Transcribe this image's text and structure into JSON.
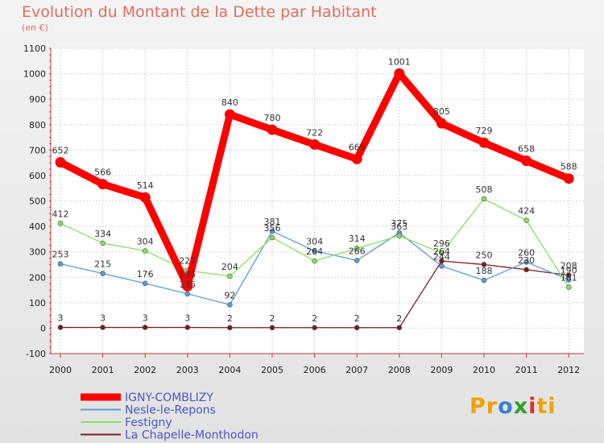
{
  "chart_data": {
    "type": "line",
    "title": "Evolution du Montant de la Dette par Habitant",
    "subtitle": "(en €)",
    "x": [
      "2000",
      "2001",
      "2002",
      "2003",
      "2004",
      "2005",
      "2006",
      "2007",
      "2008",
      "2009",
      "2010",
      "2011",
      "2012"
    ],
    "ylim": [
      -100,
      1100
    ],
    "yticks": [
      -100,
      0,
      100,
      200,
      300,
      400,
      500,
      600,
      700,
      800,
      900,
      1000,
      1100
    ],
    "grid": true,
    "legend_position": "bottom-left",
    "series": [
      {
        "name": "IGNY-COMBLIZY",
        "color": "#ff0000",
        "values": [
          652,
          566,
          514,
          165,
          840,
          780,
          722,
          665,
          1001,
          805,
          729,
          658,
          588
        ]
      },
      {
        "name": "Nesle-le-Repons",
        "color": "#5b9bd5",
        "values": [
          253,
          215,
          176,
          135,
          92,
          381,
          304,
          266,
          375,
          244,
          188,
          260,
          190
        ]
      },
      {
        "name": "Festigny",
        "color": "#88e060",
        "values": [
          412,
          334,
          304,
          227,
          204,
          356,
          264,
          314,
          363,
          296,
          508,
          424,
          161
        ]
      },
      {
        "name": "La Chapelle-Monthodon",
        "color": "#7a1e1e",
        "values": [
          3,
          3,
          3,
          3,
          2,
          2,
          2,
          2,
          2,
          264,
          250,
          230,
          208
        ]
      }
    ]
  },
  "logo": {
    "letters": [
      "P",
      "r",
      "o",
      "x",
      "i",
      "t",
      "i"
    ],
    "colors": [
      "#f0a000",
      "#f0a000",
      "#3a7fd5",
      "#30a030",
      "#e03030",
      "#f0a000",
      "#f0a000"
    ]
  }
}
